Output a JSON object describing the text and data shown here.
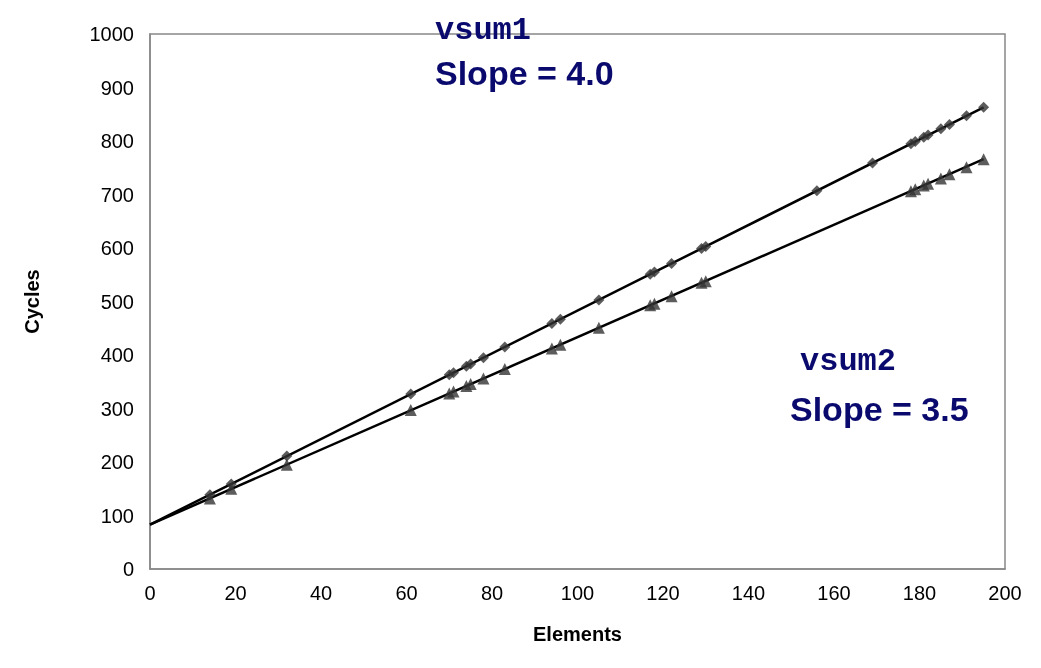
{
  "chart_data": {
    "type": "scatter",
    "xlabel": "Elements",
    "ylabel": "Cycles",
    "xlim": [
      0,
      200
    ],
    "xticks": [
      0,
      20,
      40,
      60,
      80,
      100,
      120,
      140,
      160,
      180,
      200
    ],
    "ylim": [
      0,
      1000
    ],
    "yticks": [
      0,
      100,
      200,
      300,
      400,
      500,
      600,
      700,
      800,
      900,
      1000
    ],
    "grid": false,
    "annotations": [
      "vsum1",
      "Slope = 4.0",
      "vsum2",
      "Slope = 3.5"
    ],
    "series": [
      {
        "marker": "diamond",
        "color": "#333333",
        "x": [
          14,
          19,
          32,
          61,
          70,
          71,
          74,
          75,
          78,
          83,
          94,
          96,
          105,
          117,
          118,
          122,
          129,
          130,
          156,
          169,
          178,
          179,
          181,
          182,
          185,
          187,
          191,
          195
        ],
        "values": [
          139,
          159,
          211,
          327,
          363,
          367,
          379,
          383,
          395,
          415,
          459,
          467,
          503,
          551,
          555,
          571,
          599,
          603,
          707,
          759,
          795,
          799,
          807,
          811,
          823,
          831,
          847,
          863
        ]
      },
      {
        "marker": "triangle",
        "color": "#333333",
        "x": [
          14,
          19,
          32,
          61,
          70,
          71,
          74,
          75,
          78,
          83,
          94,
          96,
          105,
          117,
          118,
          122,
          129,
          130,
          178,
          179,
          181,
          182,
          185,
          187,
          191,
          195
        ],
        "values": [
          132,
          150,
          195,
          297,
          328,
          332,
          342,
          346,
          356,
          374,
          412,
          419,
          451,
          493,
          496,
          510,
          535,
          538,
          706,
          710,
          717,
          720,
          730,
          738,
          751,
          766
        ]
      },
      {
        "type": "line",
        "marker": "none",
        "line_style": "solid",
        "color": "#000000",
        "x": [
          0,
          195
        ],
        "values": [
          83,
          863
        ]
      },
      {
        "type": "line",
        "marker": "none",
        "line_style": "solid",
        "color": "#000000",
        "x": [
          0,
          195
        ],
        "values": [
          83,
          766
        ]
      }
    ]
  }
}
